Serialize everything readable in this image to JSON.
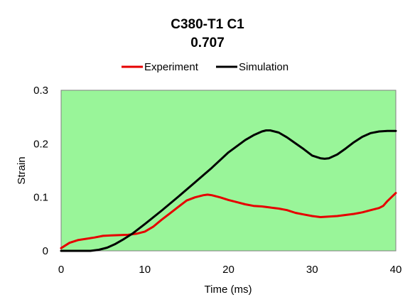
{
  "chart_data": {
    "type": "line",
    "title": "C380-T1 C1",
    "subtitle": "0.707",
    "xlabel": "Time (ms)",
    "ylabel": "Strain",
    "xlim": [
      0,
      40
    ],
    "ylim": [
      0,
      0.3
    ],
    "x_ticks": [
      "0",
      "10",
      "20",
      "30",
      "40"
    ],
    "y_ticks": [
      "0",
      "0.1",
      "0.2",
      "0.3"
    ],
    "grid": false,
    "legend": "top",
    "plot_background": "#99f599",
    "series": [
      {
        "name": "Experiment",
        "color": "#e60000",
        "x": [
          0,
          1,
          2,
          4,
          5,
          6,
          8,
          9,
          10,
          11,
          12,
          13,
          14,
          15,
          16,
          17,
          17.5,
          18,
          19,
          20,
          21,
          22,
          23,
          24,
          25,
          26,
          27,
          28,
          29,
          30,
          31,
          32,
          33,
          34,
          35,
          36,
          37,
          38,
          38.5,
          39,
          40
        ],
        "y": [
          0.005,
          0.015,
          0.02,
          0.025,
          0.028,
          0.029,
          0.03,
          0.032,
          0.036,
          0.045,
          0.058,
          0.07,
          0.082,
          0.094,
          0.1,
          0.104,
          0.105,
          0.104,
          0.1,
          0.095,
          0.091,
          0.087,
          0.084,
          0.083,
          0.081,
          0.079,
          0.076,
          0.071,
          0.068,
          0.065,
          0.063,
          0.064,
          0.065,
          0.067,
          0.069,
          0.072,
          0.076,
          0.08,
          0.084,
          0.093,
          0.108
        ]
      },
      {
        "name": "Simulation",
        "color": "#000000",
        "x": [
          0,
          2,
          3.5,
          4.5,
          5.5,
          6.5,
          7.5,
          8.5,
          10,
          12,
          14,
          16,
          18,
          20,
          22,
          23,
          24,
          24.5,
          25,
          26,
          27,
          28,
          29,
          30,
          31,
          31.5,
          32,
          33,
          34,
          35,
          36,
          37,
          38,
          39,
          40
        ],
        "y": [
          0,
          0,
          0,
          0.002,
          0.006,
          0.013,
          0.022,
          0.032,
          0.05,
          0.075,
          0.101,
          0.128,
          0.155,
          0.184,
          0.207,
          0.216,
          0.223,
          0.225,
          0.225,
          0.221,
          0.212,
          0.201,
          0.19,
          0.178,
          0.173,
          0.172,
          0.173,
          0.18,
          0.191,
          0.203,
          0.213,
          0.22,
          0.223,
          0.224,
          0.224
        ]
      }
    ]
  }
}
